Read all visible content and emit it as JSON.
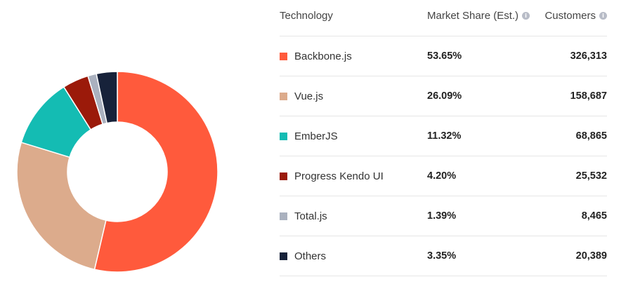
{
  "table": {
    "headers": {
      "technology": "Technology",
      "market_share": "Market Share (Est.)",
      "customers": "Customers"
    },
    "rows": [
      {
        "technology": "Backbone.js",
        "share": "53.65%",
        "customers": "326,313",
        "color": "#ff5a3c"
      },
      {
        "technology": "Vue.js",
        "share": "26.09%",
        "customers": "158,687",
        "color": "#dcab8c"
      },
      {
        "technology": "EmberJS",
        "share": "11.32%",
        "customers": "68,865",
        "color": "#14bcb3"
      },
      {
        "technology": "Progress Kendo UI",
        "share": "4.20%",
        "customers": "25,532",
        "color": "#9b1a0a"
      },
      {
        "technology": "Total.js",
        "share": "1.39%",
        "customers": "8,465",
        "color": "#aab1bf"
      },
      {
        "technology": "Others",
        "share": "3.35%",
        "customers": "20,389",
        "color": "#17223a"
      }
    ]
  },
  "chart_data": {
    "type": "pie",
    "donut": true,
    "categories": [
      "Backbone.js",
      "Vue.js",
      "EmberJS",
      "Progress Kendo UI",
      "Total.js",
      "Others"
    ],
    "values": [
      53.65,
      26.09,
      11.32,
      4.2,
      1.39,
      3.35
    ],
    "colors": [
      "#ff5a3c",
      "#dcab8c",
      "#14bcb3",
      "#9b1a0a",
      "#aab1bf",
      "#17223a"
    ],
    "start": "top",
    "direction": "clockwise"
  }
}
